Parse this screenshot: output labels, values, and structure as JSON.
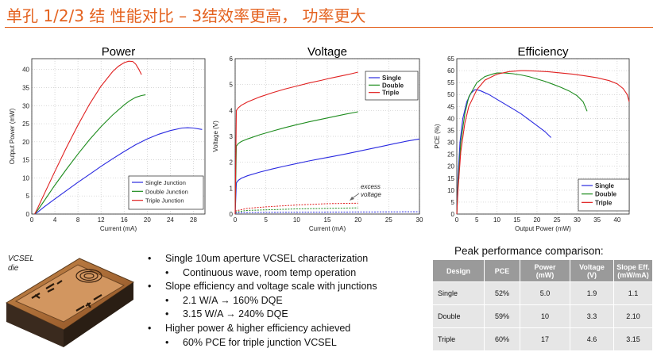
{
  "slide_title": "单孔 1/2/3 结 性能对比 – 3结效率更高， 功率更大",
  "die_label": [
    "VCSEL",
    "die"
  ],
  "bullets": [
    {
      "level": 1,
      "text": "Single 10um aperture VCSEL characterization"
    },
    {
      "level": 2,
      "text": "Continuous wave, room temp operation"
    },
    {
      "level": 1,
      "text": "Slope efficiency and voltage scale with junctions"
    },
    {
      "level": 2,
      "text": "2.1 W/A → 160% DQE"
    },
    {
      "level": 2,
      "text": "3.15 W/A → 240% DQE"
    },
    {
      "level": 1,
      "text": "Higher power & higher efficiency achieved"
    },
    {
      "level": 2,
      "text": "60% PCE for triple junction VCSEL"
    }
  ],
  "comparison": {
    "title": "Peak performance comparison:",
    "headers": [
      "Design",
      "PCE",
      "Power\n(mW)",
      "Voltage\n(V)",
      "Slope Eff.\n(mW/mA)"
    ],
    "rows": [
      [
        "Single",
        "52%",
        "5.0",
        "1.9",
        "1.1"
      ],
      [
        "Double",
        "59%",
        "10",
        "3.3",
        "2.10"
      ],
      [
        "Triple",
        "60%",
        "17",
        "4.6",
        "3.15"
      ]
    ]
  },
  "colors": {
    "title": "#e4621f",
    "single": "#2a2ae0",
    "double": "#1e8c1e",
    "triple": "#e02020"
  },
  "chart_data": [
    {
      "type": "line",
      "title": "Power",
      "xlabel": "Current (mA)",
      "ylabel": "Output Power (mW)",
      "xlim": [
        0,
        30
      ],
      "ylim": [
        0,
        43
      ],
      "xticks": [
        0,
        4,
        8,
        12,
        16,
        20,
        24,
        28
      ],
      "yticks": [
        0,
        5,
        10,
        15,
        20,
        25,
        30,
        35,
        40
      ],
      "legend": "bottom-right",
      "series": [
        {
          "name": "Single Junction",
          "color": "#2a2ae0",
          "x": [
            0.5,
            1,
            2,
            4,
            6,
            8,
            10,
            12,
            14,
            16,
            18,
            20,
            22,
            24,
            26,
            27,
            28,
            29.5
          ],
          "y": [
            0,
            0.5,
            1.8,
            4.2,
            6.5,
            8.8,
            11,
            13.2,
            15.3,
            17.3,
            19.2,
            20.8,
            22.1,
            23.1,
            23.8,
            23.9,
            23.8,
            23.4
          ]
        },
        {
          "name": "Double Junction",
          "color": "#1e8c1e",
          "x": [
            0.5,
            1,
            2,
            4,
            6,
            8,
            10,
            12,
            14,
            16,
            17,
            18,
            19,
            19.7
          ],
          "y": [
            0,
            1,
            3.3,
            8,
            12.4,
            16.6,
            20.6,
            24.2,
            27.4,
            30.2,
            31.4,
            32.3,
            32.8,
            33
          ]
        },
        {
          "name": "Triple Junction",
          "color": "#e02020",
          "x": [
            0.5,
            1,
            2,
            4,
            6,
            8,
            10,
            12,
            14,
            15,
            16,
            16.8,
            17.5,
            18,
            18.5,
            19
          ],
          "y": [
            0,
            1.6,
            5,
            11.8,
            18.4,
            24.6,
            30.4,
            35.4,
            39.4,
            40.9,
            41.9,
            42.3,
            42.2,
            41.5,
            40.2,
            38.6
          ]
        }
      ]
    },
    {
      "type": "line",
      "title": "Voltage",
      "xlabel": "Current (mA)",
      "ylabel": "Voltage (V)",
      "xlim": [
        0,
        30
      ],
      "ylim": [
        0,
        6
      ],
      "xticks": [
        0,
        5,
        10,
        15,
        20,
        25,
        30
      ],
      "yticks": [
        0,
        1,
        2,
        3,
        4,
        5,
        6
      ],
      "legend": "top-right",
      "annotation": [
        "excess",
        "voltage"
      ],
      "series": [
        {
          "name": "Single",
          "color": "#2a2ae0",
          "x": [
            0,
            0.2,
            0.5,
            1,
            2,
            4,
            6,
            8,
            10,
            12,
            14,
            16,
            18,
            20,
            22,
            24,
            26,
            28,
            30
          ],
          "y": [
            0,
            1.2,
            1.3,
            1.38,
            1.48,
            1.62,
            1.74,
            1.85,
            1.95,
            2.05,
            2.14,
            2.23,
            2.32,
            2.42,
            2.52,
            2.62,
            2.72,
            2.82,
            2.9
          ]
        },
        {
          "name": "Double",
          "color": "#1e8c1e",
          "x": [
            0,
            0.2,
            0.5,
            1,
            2,
            4,
            6,
            8,
            10,
            12,
            14,
            16,
            18,
            20
          ],
          "y": [
            0,
            2.62,
            2.72,
            2.8,
            2.9,
            3.06,
            3.2,
            3.33,
            3.45,
            3.56,
            3.66,
            3.76,
            3.86,
            3.95
          ]
        },
        {
          "name": "Triple",
          "color": "#e02020",
          "x": [
            0,
            0.2,
            0.5,
            1,
            2,
            4,
            6,
            8,
            10,
            12,
            14,
            15,
            16,
            17,
            18,
            19,
            20
          ],
          "y": [
            0,
            4.0,
            4.1,
            4.2,
            4.33,
            4.52,
            4.68,
            4.82,
            4.94,
            5.06,
            5.16,
            5.22,
            5.27,
            5.32,
            5.37,
            5.42,
            5.48
          ]
        }
      ],
      "excess_voltage_series": [
        {
          "color": "#2a2ae0",
          "x": [
            0,
            2,
            10,
            20,
            30
          ],
          "y": [
            0.04,
            0.06,
            0.07,
            0.08,
            0.09
          ]
        },
        {
          "color": "#1e8c1e",
          "x": [
            0,
            2,
            10,
            20
          ],
          "y": [
            0.08,
            0.14,
            0.2,
            0.24
          ]
        },
        {
          "color": "#e02020",
          "x": [
            0,
            2,
            5,
            10,
            15,
            20
          ],
          "y": [
            0.12,
            0.22,
            0.28,
            0.35,
            0.4,
            0.42
          ]
        }
      ]
    },
    {
      "type": "line",
      "title": "Efficiency",
      "xlabel": "Output Power (mW)",
      "ylabel": "PCE (%)",
      "xlim": [
        0,
        43
      ],
      "ylim": [
        0,
        65
      ],
      "xticks": [
        0,
        5,
        10,
        15,
        20,
        25,
        30,
        35,
        40
      ],
      "yticks": [
        0,
        5,
        10,
        15,
        20,
        25,
        30,
        35,
        40,
        45,
        50,
        55,
        60,
        65
      ],
      "legend": "bottom-right",
      "series": [
        {
          "name": "Single",
          "color": "#2a2ae0",
          "x": [
            0,
            0.3,
            0.8,
            1.5,
            2.5,
            3.5,
            4.5,
            5,
            6,
            8,
            10,
            12,
            14,
            16,
            18,
            20,
            22,
            23.5
          ],
          "y": [
            0,
            15,
            30,
            40,
            47,
            50.5,
            52,
            52,
            51.5,
            50,
            48,
            46,
            44,
            42,
            39.5,
            37,
            34.5,
            32
          ]
        },
        {
          "name": "Double",
          "color": "#1e8c1e",
          "x": [
            0,
            0.3,
            1,
            2,
            3,
            5,
            7,
            9,
            10,
            12,
            14,
            16,
            18,
            20,
            22,
            24,
            26,
            28,
            30,
            31.5,
            32.5
          ],
          "y": [
            0,
            12,
            30,
            42,
            49,
            55,
            57.5,
            58.6,
            59,
            59,
            58.7,
            58.2,
            57.5,
            56.5,
            55.5,
            54.3,
            53,
            51.5,
            49.5,
            47,
            43
          ]
        },
        {
          "name": "Triple",
          "color": "#e02020",
          "x": [
            0,
            0.3,
            1,
            2,
            3,
            5,
            7,
            10,
            13,
            16,
            17,
            20,
            23,
            26,
            29,
            32,
            35,
            38,
            40,
            41.5,
            42.5,
            43
          ],
          "y": [
            0,
            10,
            26,
            38,
            45,
            52,
            56,
            58.5,
            59.6,
            60,
            60,
            59.8,
            59.5,
            59,
            58.5,
            57.8,
            57,
            55.8,
            54.5,
            52.5,
            50,
            47
          ]
        }
      ]
    }
  ]
}
